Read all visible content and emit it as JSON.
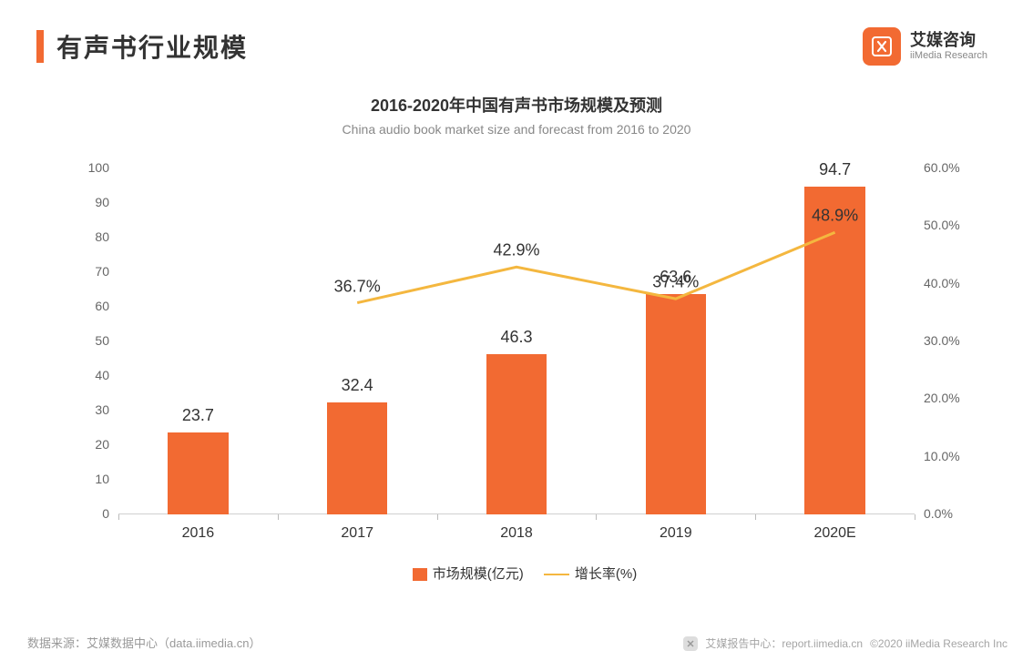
{
  "header": {
    "title": "有声书行业规模",
    "brand_cn": "艾媒咨询",
    "brand_en": "iiMedia Research"
  },
  "chart": {
    "type": "bar+line",
    "title_cn": "2016-2020年中国有声书市场规模及预测",
    "title_en": "China audio book market size and forecast from 2016 to 2020",
    "categories": [
      "2016",
      "2017",
      "2018",
      "2019",
      "2020E"
    ],
    "bar_values": [
      23.7,
      32.4,
      46.3,
      63.6,
      94.7
    ],
    "line_values": [
      null,
      36.7,
      42.9,
      37.4,
      48.9
    ],
    "bar_color": "#f26a32",
    "line_color": "#f4b73f",
    "background_color": "#ffffff",
    "y_left": {
      "min": 0,
      "max": 100,
      "step": 10
    },
    "y_right": {
      "min": 0,
      "max": 60,
      "step": 10,
      "suffix": "%",
      "decimals": 1
    },
    "bar_width_ratio": 0.38,
    "line_width": 3,
    "axis_color": "#d0d0d0",
    "label_fontsize": 18,
    "tick_fontsize": 14,
    "legend": {
      "bar_label": "市场规模(亿元)",
      "line_label": "增长率(%)"
    }
  },
  "source": "数据来源：艾媒数据中心（data.iimedia.cn）",
  "footer": {
    "report_center": "艾媒报告中心：report.iimedia.cn",
    "copyright": "©2020 iiMedia Research Inc"
  }
}
